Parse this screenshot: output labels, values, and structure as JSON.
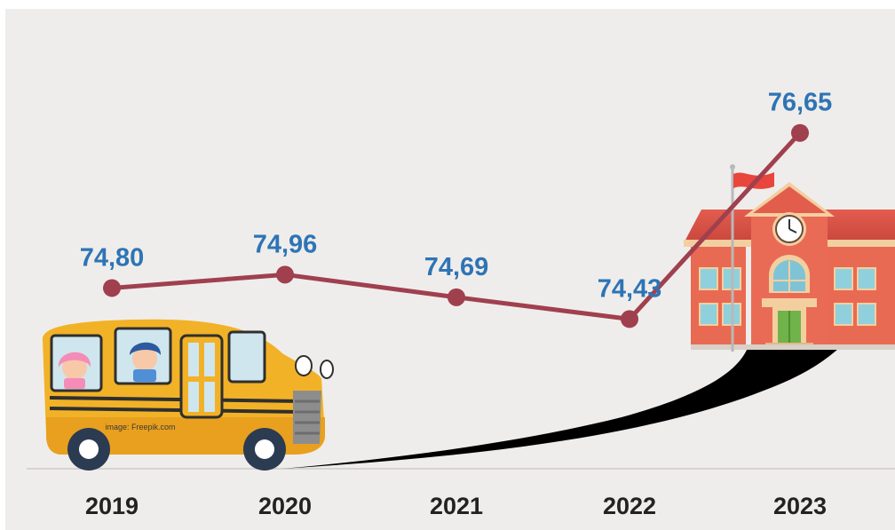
{
  "colors": {
    "background": "#efedeb",
    "line": "#a0404e",
    "value_label": "#2e74b5",
    "year_label": "#222222",
    "road": "#000000",
    "bus_body": "#f2b227",
    "school_wall": "#e96a52",
    "school_roof": "#d9534a"
  },
  "credit": "image: Freepik.com",
  "chart_data": {
    "type": "line",
    "title": "",
    "xlabel": "",
    "ylabel": "",
    "categories": [
      "2019",
      "2020",
      "2021",
      "2022",
      "2023"
    ],
    "series": [
      {
        "values": [
          74.8,
          74.96,
          74.69,
          74.43,
          76.65
        ],
        "labels": [
          "74,80",
          "74,96",
          "74,69",
          "74,43",
          "76,65"
        ]
      }
    ],
    "ylim": [
      74.0,
      77.6
    ],
    "grid": false,
    "legend": "none"
  }
}
